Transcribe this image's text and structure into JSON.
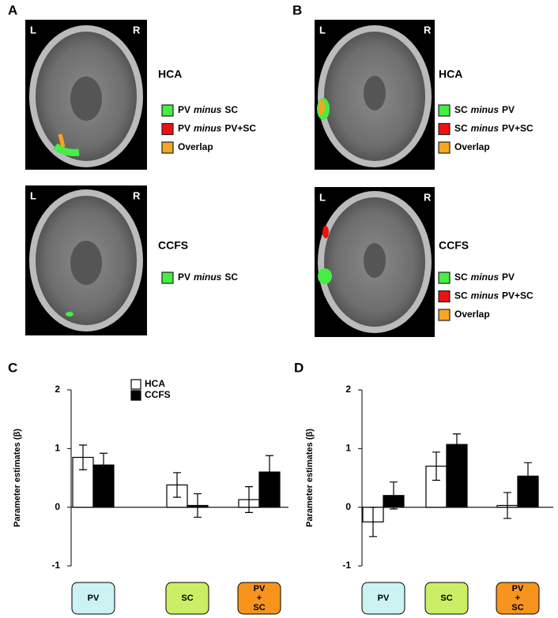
{
  "panels": [
    {
      "label": "A",
      "image_labels": [
        "L",
        "R"
      ],
      "rows": [
        {
          "group": "HCA",
          "legend": [
            {
              "parts": [
                "PV",
                "minus",
                "SC"
              ],
              "color": "#44ee44"
            },
            {
              "parts": [
                "PV",
                "minus",
                "PV+SC"
              ],
              "color": "#ee1111"
            },
            {
              "parts": [
                "Overlap"
              ],
              "color": "#f5a623"
            }
          ]
        },
        {
          "group": "CCFS",
          "legend": [
            {
              "parts": [
                "PV",
                "minus",
                "SC"
              ],
              "color": "#44ee44"
            }
          ]
        }
      ]
    },
    {
      "label": "B",
      "image_labels": [
        "L",
        "R"
      ],
      "rows": [
        {
          "group": "HCA",
          "legend": [
            {
              "parts": [
                "SC",
                "minus",
                "PV"
              ],
              "color": "#44ee44"
            },
            {
              "parts": [
                "SC",
                "minus",
                "PV+SC"
              ],
              "color": "#ee1111"
            },
            {
              "parts": [
                "Overlap"
              ],
              "color": "#f5a623"
            }
          ]
        },
        {
          "group": "CCFS",
          "legend": [
            {
              "parts": [
                "SC",
                "minus",
                "PV"
              ],
              "color": "#44ee44"
            },
            {
              "parts": [
                "SC",
                "minus",
                "PV+SC"
              ],
              "color": "#ee1111"
            },
            {
              "parts": [
                "Overlap"
              ],
              "color": "#f5a623"
            }
          ]
        }
      ]
    }
  ],
  "chart_data": [
    {
      "type": "bar",
      "panel": "C",
      "y_label": "Parameter estimates (β)",
      "categories": [
        "PV",
        "SC",
        "PV + SC"
      ],
      "category_colors": [
        "#ccf2f2",
        "#ccee66",
        "#f7941d"
      ],
      "ylim": [
        -1,
        2
      ],
      "yticks": [
        -1,
        0,
        1,
        2
      ],
      "legend": "top",
      "series": [
        {
          "name": "HCA",
          "color": "#ffffff",
          "values": [
            0.85,
            0.38,
            0.13
          ],
          "errors": [
            0.21,
            0.21,
            0.22
          ]
        },
        {
          "name": "CCFS",
          "color": "#000000",
          "values": [
            0.72,
            0.03,
            0.6
          ],
          "errors": [
            0.2,
            0.2,
            0.28
          ]
        }
      ]
    },
    {
      "type": "bar",
      "panel": "D",
      "y_label": "Parameter estimates (β)",
      "categories": [
        "PV",
        "SC",
        "PV + SC"
      ],
      "category_colors": [
        "#ccf2f2",
        "#ccee66",
        "#f7941d"
      ],
      "ylim": [
        -1,
        2
      ],
      "yticks": [
        -1,
        0,
        1,
        2
      ],
      "series": [
        {
          "color": "#ffffff",
          "values": [
            -0.25,
            0.7,
            0.03
          ],
          "errors": [
            0.25,
            0.24,
            0.22
          ]
        },
        {
          "color": "#000000",
          "values": [
            0.2,
            1.07,
            0.53
          ],
          "errors": [
            0.23,
            0.18,
            0.23
          ]
        }
      ]
    }
  ]
}
